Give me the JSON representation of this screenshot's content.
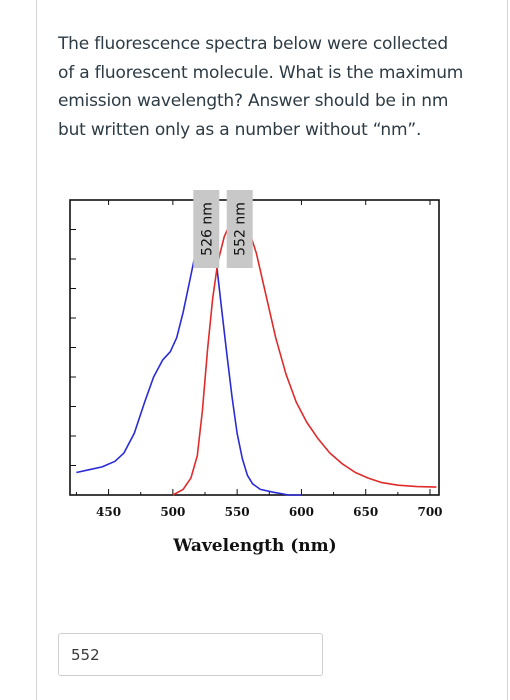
{
  "question": {
    "text": "The fluorescence spectra below were collected of a fluorescent molecule.  What is the maximum emission wavelength? Answer should be in nm but written only as a number without “nm”."
  },
  "answer": {
    "value": "552"
  },
  "chart_data": {
    "type": "line",
    "title": "",
    "xlabel": "Wavelength (nm)",
    "ylabel": "",
    "xlim": [
      420,
      707
    ],
    "ylim": [
      0,
      1.05
    ],
    "x_ticks": [
      450,
      500,
      550,
      600,
      650,
      700
    ],
    "grid": false,
    "series": [
      {
        "color": "#2b2bd6",
        "points": [
          [
            425,
            0.08
          ],
          [
            435,
            0.09
          ],
          [
            445,
            0.1
          ],
          [
            455,
            0.12
          ],
          [
            462,
            0.15
          ],
          [
            470,
            0.22
          ],
          [
            478,
            0.33
          ],
          [
            485,
            0.42
          ],
          [
            492,
            0.48
          ],
          [
            498,
            0.51
          ],
          [
            503,
            0.56
          ],
          [
            508,
            0.65
          ],
          [
            513,
            0.76
          ],
          [
            518,
            0.87
          ],
          [
            522,
            0.95
          ],
          [
            526,
            1.0
          ],
          [
            530,
            0.95
          ],
          [
            534,
            0.82
          ],
          [
            538,
            0.66
          ],
          [
            542,
            0.5
          ],
          [
            546,
            0.35
          ],
          [
            550,
            0.22
          ],
          [
            554,
            0.13
          ],
          [
            558,
            0.07
          ],
          [
            562,
            0.04
          ],
          [
            568,
            0.02
          ],
          [
            578,
            0.01
          ],
          [
            590,
            0.0
          ],
          [
            600,
            0.0
          ]
        ]
      },
      {
        "color": "#e02b2b",
        "points": [
          [
            500,
            0.0
          ],
          [
            508,
            0.02
          ],
          [
            514,
            0.06
          ],
          [
            519,
            0.14
          ],
          [
            523,
            0.3
          ],
          [
            527,
            0.52
          ],
          [
            531,
            0.7
          ],
          [
            535,
            0.83
          ],
          [
            540,
            0.92
          ],
          [
            546,
            0.98
          ],
          [
            552,
            1.0
          ],
          [
            558,
            0.96
          ],
          [
            565,
            0.86
          ],
          [
            572,
            0.72
          ],
          [
            580,
            0.56
          ],
          [
            588,
            0.43
          ],
          [
            596,
            0.33
          ],
          [
            604,
            0.26
          ],
          [
            613,
            0.2
          ],
          [
            622,
            0.15
          ],
          [
            632,
            0.11
          ],
          [
            642,
            0.08
          ],
          [
            652,
            0.06
          ],
          [
            662,
            0.045
          ],
          [
            675,
            0.035
          ],
          [
            690,
            0.03
          ],
          [
            705,
            0.028
          ]
        ]
      }
    ],
    "peak_labels": [
      {
        "text": "526 nm",
        "x": 526,
        "color": "#c8c8c8"
      },
      {
        "text": "552 nm",
        "x": 552,
        "color": "#c8c8c8"
      }
    ]
  }
}
